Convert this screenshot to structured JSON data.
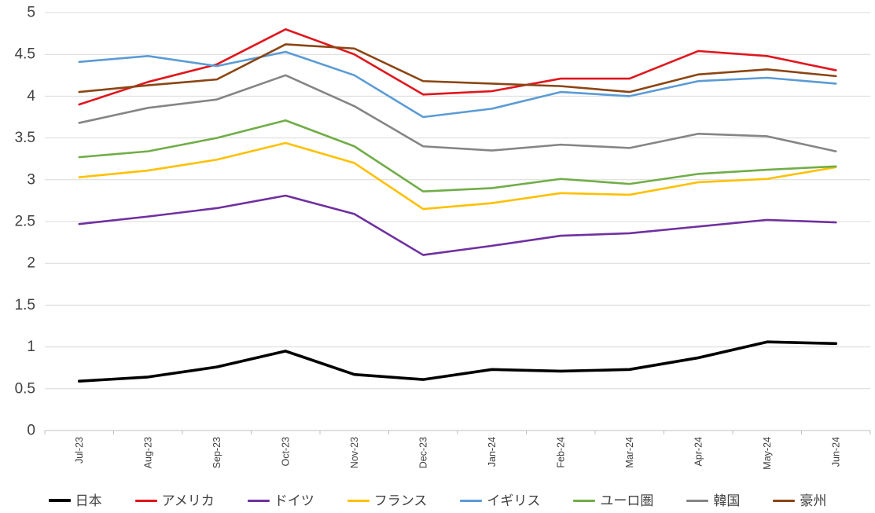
{
  "colors": {
    "background": "#FFFFFF",
    "gridline": "#D9D9D9",
    "axis_line": "#BFBFBF",
    "tick_mark": "#BFBFBF",
    "axis_label": "#404040",
    "legend_text": "#404040"
  },
  "chart_data": {
    "type": "line",
    "title": "",
    "xlabel": "",
    "ylabel": "",
    "grid": "horizontal",
    "legend_position": "bottom",
    "x": [
      "Jul-23",
      "Aug-23",
      "Sep-23",
      "Oct-23",
      "Nov-23",
      "Dec-23",
      "Jan-24",
      "Feb-24",
      "Mar-24",
      "Apr-24",
      "May-24",
      "Jun-24"
    ],
    "y_axis": {
      "min": 0,
      "max": 5,
      "step": 0.5,
      "tick_labels": [
        "0",
        "0.5",
        "1",
        "1.5",
        "2",
        "2.5",
        "3",
        "3.5",
        "4",
        "4.5",
        "5"
      ]
    },
    "series": [
      {
        "name": "日本",
        "color": "#000000",
        "width": 3.6,
        "values": [
          0.59,
          0.64,
          0.76,
          0.95,
          0.67,
          0.61,
          0.73,
          0.71,
          0.73,
          0.87,
          1.06,
          1.04
        ]
      },
      {
        "name": "アメリカ",
        "color": "#E0161D",
        "width": 2.6,
        "values": [
          3.9,
          4.17,
          4.38,
          4.8,
          4.5,
          4.02,
          4.06,
          4.21,
          4.21,
          4.54,
          4.48,
          4.31
        ]
      },
      {
        "name": "ドイツ",
        "color": "#7030A0",
        "width": 2.6,
        "values": [
          2.47,
          2.56,
          2.66,
          2.81,
          2.59,
          2.1,
          2.21,
          2.33,
          2.36,
          2.44,
          2.52,
          2.49
        ]
      },
      {
        "name": "フランス",
        "color": "#FFC000",
        "width": 2.6,
        "values": [
          3.03,
          3.11,
          3.24,
          3.44,
          3.2,
          2.65,
          2.72,
          2.84,
          2.82,
          2.97,
          3.01,
          3.15
        ]
      },
      {
        "name": "イギリス",
        "color": "#5B9BD5",
        "width": 2.6,
        "values": [
          4.41,
          4.48,
          4.36,
          4.53,
          4.25,
          3.75,
          3.85,
          4.05,
          4.0,
          4.18,
          4.22,
          4.15
        ]
      },
      {
        "name": "ユーロ圏",
        "color": "#70AD47",
        "width": 2.6,
        "values": [
          3.27,
          3.34,
          3.5,
          3.71,
          3.4,
          2.86,
          2.9,
          3.01,
          2.95,
          3.07,
          3.12,
          3.16
        ]
      },
      {
        "name": "韓国",
        "color": "#858585",
        "width": 2.6,
        "values": [
          3.68,
          3.86,
          3.96,
          4.25,
          3.88,
          3.4,
          3.35,
          3.42,
          3.38,
          3.55,
          3.52,
          3.34
        ]
      },
      {
        "name": "豪州",
        "color": "#8B4513",
        "width": 2.6,
        "values": [
          4.05,
          4.13,
          4.2,
          4.62,
          4.57,
          4.18,
          4.15,
          4.12,
          4.05,
          4.26,
          4.32,
          4.24
        ]
      }
    ]
  }
}
